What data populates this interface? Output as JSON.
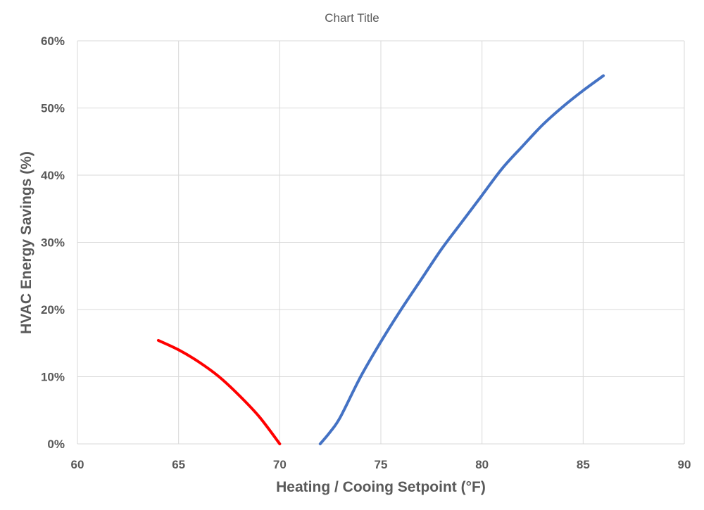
{
  "chart_data": {
    "type": "line",
    "title": "Chart Title",
    "xlabel": "Heating / Cooing Setpoint (°F)",
    "ylabel": "HVAC Energy Savings (%)",
    "xlim": [
      60,
      90
    ],
    "ylim": [
      0,
      0.6
    ],
    "x_ticks": [
      "60",
      "65",
      "70",
      "75",
      "80",
      "85",
      "90"
    ],
    "y_ticks": [
      "0%",
      "10%",
      "20%",
      "30%",
      "40%",
      "50%",
      "60%"
    ],
    "grid": true,
    "legend": "none",
    "series": [
      {
        "color": "#ff0000",
        "points": [
          [
            64,
            0.154
          ],
          [
            65,
            0.14
          ],
          [
            66,
            0.122
          ],
          [
            67,
            0.1
          ],
          [
            68,
            0.072
          ],
          [
            69,
            0.04
          ],
          [
            70,
            0.0
          ]
        ]
      },
      {
        "color": "#4472c4",
        "points": [
          [
            72,
            0.0
          ],
          [
            72.5,
            0.018
          ],
          [
            73,
            0.04
          ],
          [
            74,
            0.1
          ],
          [
            75,
            0.152
          ],
          [
            76,
            0.2
          ],
          [
            77,
            0.245
          ],
          [
            78,
            0.29
          ],
          [
            79,
            0.33
          ],
          [
            80,
            0.37
          ],
          [
            81,
            0.41
          ],
          [
            82,
            0.443
          ],
          [
            83,
            0.475
          ],
          [
            84,
            0.502
          ],
          [
            85,
            0.526
          ],
          [
            86,
            0.548
          ]
        ]
      }
    ]
  }
}
